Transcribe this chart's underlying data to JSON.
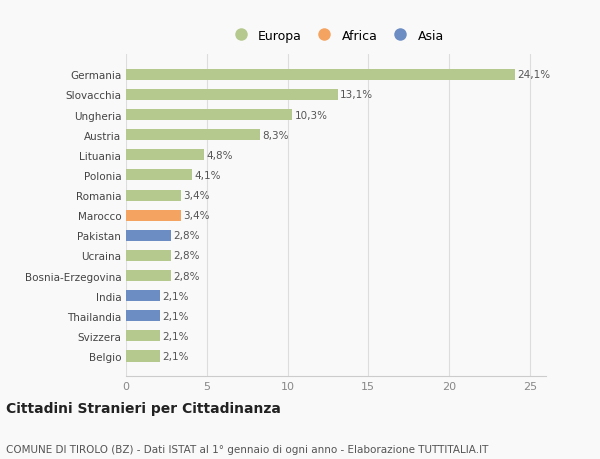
{
  "categories": [
    "Germania",
    "Slovacchia",
    "Ungheria",
    "Austria",
    "Lituania",
    "Polonia",
    "Romania",
    "Marocco",
    "Pakistan",
    "Ucraina",
    "Bosnia-Erzegovina",
    "India",
    "Thailandia",
    "Svizzera",
    "Belgio"
  ],
  "values": [
    24.1,
    13.1,
    10.3,
    8.3,
    4.8,
    4.1,
    3.4,
    3.4,
    2.8,
    2.8,
    2.8,
    2.1,
    2.1,
    2.1,
    2.1
  ],
  "labels": [
    "24,1%",
    "13,1%",
    "10,3%",
    "8,3%",
    "4,8%",
    "4,1%",
    "3,4%",
    "3,4%",
    "2,8%",
    "2,8%",
    "2,8%",
    "2,1%",
    "2,1%",
    "2,1%",
    "2,1%"
  ],
  "continents": [
    "Europa",
    "Europa",
    "Europa",
    "Europa",
    "Europa",
    "Europa",
    "Europa",
    "Africa",
    "Asia",
    "Europa",
    "Europa",
    "Asia",
    "Asia",
    "Europa",
    "Europa"
  ],
  "colors": {
    "Europa": "#b5c98e",
    "Africa": "#f4a460",
    "Asia": "#6b8dc4"
  },
  "legend_order": [
    "Europa",
    "Africa",
    "Asia"
  ],
  "legend_colors": [
    "#b5c98e",
    "#f4a460",
    "#6b8dc4"
  ],
  "title": "Cittadini Stranieri per Cittadinanza",
  "subtitle": "COMUNE DI TIROLO (BZ) - Dati ISTAT al 1° gennaio di ogni anno - Elaborazione TUTTITALIA.IT",
  "xlim": [
    0,
    26
  ],
  "xticks": [
    0,
    5,
    10,
    15,
    20,
    25
  ],
  "background_color": "#f9f9f9",
  "bar_height": 0.55,
  "label_fontsize": 7.5,
  "ytick_fontsize": 7.5,
  "xtick_fontsize": 8,
  "title_fontsize": 10,
  "subtitle_fontsize": 7.5,
  "legend_fontsize": 9
}
